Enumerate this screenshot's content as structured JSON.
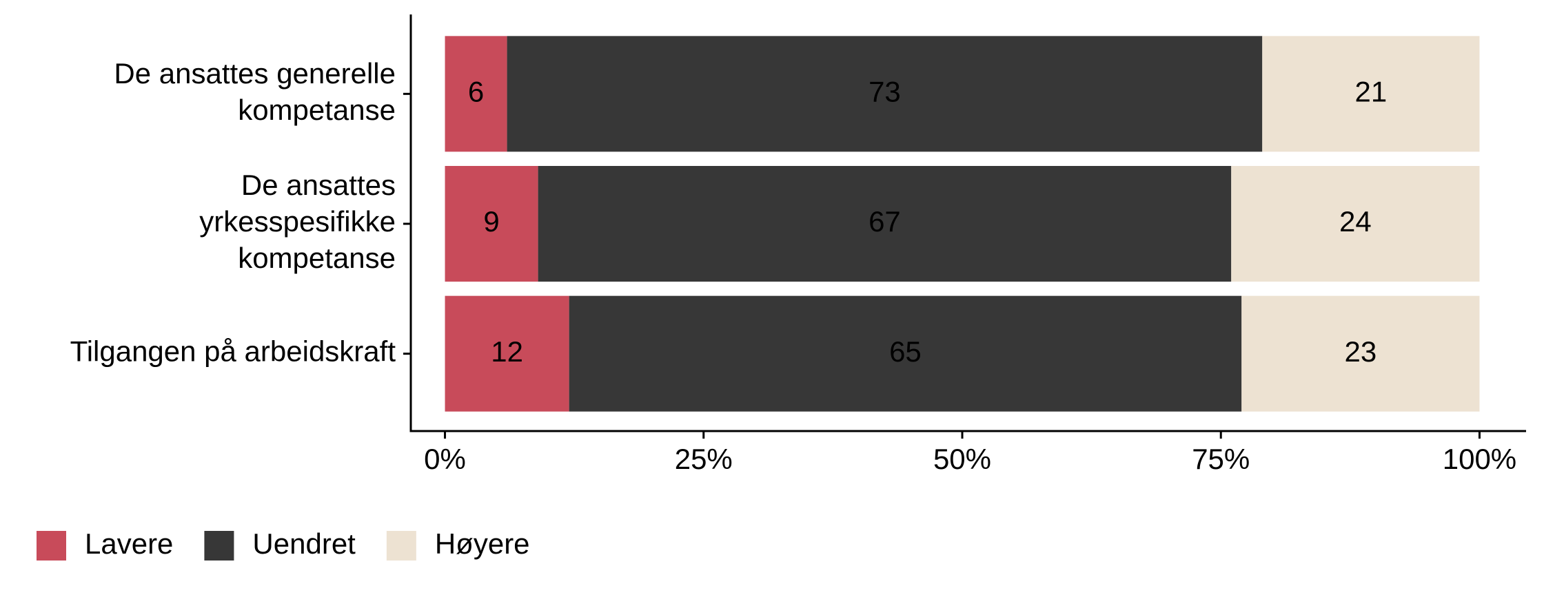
{
  "chart_data": {
    "type": "stacked-bar-horizontal",
    "categories": [
      "De ansattes generelle\nkompetanse",
      "De ansattes\nyrkesspesifikke\nkompetanse",
      "Tilgangen på arbeidskraft"
    ],
    "series": [
      {
        "name": "Lavere",
        "color": "#c84b5a",
        "values": [
          6,
          9,
          12
        ]
      },
      {
        "name": "Uendret",
        "color": "#373737",
        "values": [
          73,
          67,
          65
        ]
      },
      {
        "name": "Høyere",
        "color": "#ede2d2",
        "values": [
          21,
          24,
          23
        ]
      }
    ],
    "xlim": [
      -3.3,
      104.5
    ],
    "xticks": [
      {
        "value": 0,
        "label": "0%"
      },
      {
        "value": 25,
        "label": "25%"
      },
      {
        "value": 50,
        "label": "50%"
      },
      {
        "value": 75,
        "label": "75%"
      },
      {
        "value": 100,
        "label": "100%"
      }
    ],
    "legend": "bottom-left"
  }
}
